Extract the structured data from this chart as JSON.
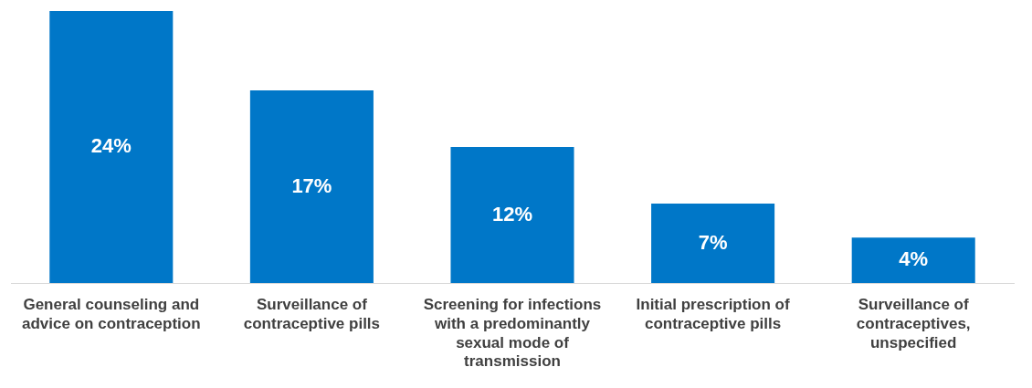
{
  "chart_data": {
    "type": "bar",
    "categories": [
      "General counseling and advice on contraception",
      "Surveillance of contraceptive pills",
      "Screening for infections with a predominantly sexual mode of transmission",
      "Initial prescription of contraceptive pills",
      "Surveillance of contraceptives, unspecified"
    ],
    "values": [
      24,
      17,
      12,
      7,
      4
    ],
    "value_labels": [
      "24%",
      "17%",
      "12%",
      "7%",
      "4%"
    ],
    "color": "#0077c8",
    "grid": false,
    "legend": false
  }
}
